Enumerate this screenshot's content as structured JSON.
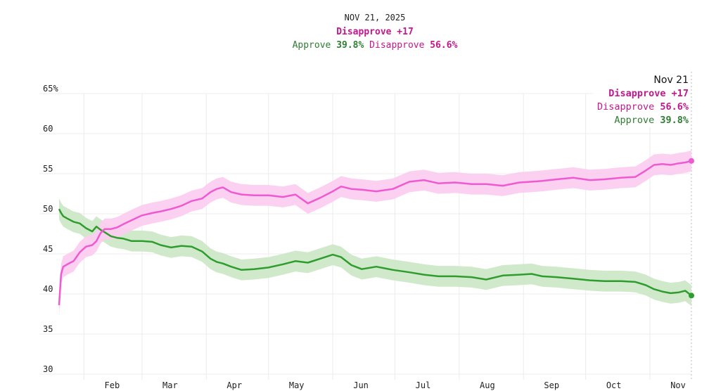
{
  "header": {
    "date": "NOV 21, 2025",
    "net": "Disapprove +17",
    "approve_label": "Approve",
    "approve_value": "39.8%",
    "disapprove_label": "Disapprove",
    "disapprove_value": "56.6%"
  },
  "callout": {
    "date": "Nov 21",
    "net": "Disapprove +17",
    "disapprove_label": "Disapprove",
    "disapprove_value": "56.6%",
    "approve_label": "Approve",
    "approve_value": "39.8%"
  },
  "colors": {
    "approve": "#2e9d2e",
    "approve_band": "#cfe8c8",
    "disapprove": "#f05ad0",
    "disapprove_band": "#fbcdef",
    "gridline": "#ececec"
  },
  "chart_data": {
    "type": "line",
    "title": "",
    "xlabel": "",
    "ylabel": "",
    "ylim": [
      30,
      65
    ],
    "y_ticks": [
      "30",
      "35",
      "40",
      "45",
      "50",
      "55",
      "60",
      "65%"
    ],
    "x_tick_labels": [
      "Feb",
      "Mar",
      "Apr",
      "May",
      "Jun",
      "Jul",
      "Aug",
      "Sep",
      "Oct",
      "Nov"
    ],
    "x_tick_dates": [
      "2025-02-01",
      "2025-03-01",
      "2025-04-01",
      "2025-05-01",
      "2025-06-01",
      "2025-07-01",
      "2025-08-01",
      "2025-09-01",
      "2025-10-01",
      "2025-11-01"
    ],
    "x_start": "2025-01-20",
    "x_end": "2025-11-21",
    "band_halfwidth": 1.3,
    "grid": true,
    "series": [
      {
        "name": "Approve",
        "x": [
          "2025-01-20",
          "2025-01-21",
          "2025-01-22",
          "2025-01-24",
          "2025-01-27",
          "2025-01-30",
          "2025-02-02",
          "2025-02-05",
          "2025-02-07",
          "2025-02-09",
          "2025-02-11",
          "2025-02-14",
          "2025-02-17",
          "2025-02-20",
          "2025-02-24",
          "2025-03-01",
          "2025-03-06",
          "2025-03-10",
          "2025-03-15",
          "2025-03-20",
          "2025-03-25",
          "2025-03-30",
          "2025-04-03",
          "2025-04-06",
          "2025-04-09",
          "2025-04-13",
          "2025-04-18",
          "2025-04-24",
          "2025-05-01",
          "2025-05-08",
          "2025-05-14",
          "2025-05-20",
          "2025-05-26",
          "2025-06-01",
          "2025-06-05",
          "2025-06-10",
          "2025-06-15",
          "2025-06-22",
          "2025-06-30",
          "2025-07-08",
          "2025-07-15",
          "2025-07-22",
          "2025-07-30",
          "2025-08-07",
          "2025-08-14",
          "2025-08-22",
          "2025-08-30",
          "2025-09-05",
          "2025-09-10",
          "2025-09-17",
          "2025-09-25",
          "2025-10-03",
          "2025-10-10",
          "2025-10-18",
          "2025-10-25",
          "2025-10-30",
          "2025-11-03",
          "2025-11-07",
          "2025-11-11",
          "2025-11-15",
          "2025-11-18",
          "2025-11-21"
        ],
        "y": [
          50.6,
          50.1,
          49.7,
          49.4,
          49.0,
          48.8,
          48.2,
          47.8,
          48.4,
          48.0,
          47.7,
          47.2,
          47.0,
          46.9,
          46.6,
          46.6,
          46.5,
          46.1,
          45.8,
          46.0,
          45.9,
          45.3,
          44.4,
          44.0,
          43.8,
          43.4,
          43.0,
          43.1,
          43.3,
          43.7,
          44.1,
          43.9,
          44.4,
          44.9,
          44.6,
          43.6,
          43.1,
          43.4,
          43.0,
          42.7,
          42.4,
          42.2,
          42.2,
          42.1,
          41.8,
          42.3,
          42.4,
          42.5,
          42.2,
          42.1,
          41.9,
          41.7,
          41.6,
          41.6,
          41.5,
          41.1,
          40.6,
          40.3,
          40.1,
          40.2,
          40.4,
          39.8
        ]
      },
      {
        "name": "Disapprove",
        "x": [
          "2025-01-20",
          "2025-01-21",
          "2025-01-22",
          "2025-01-24",
          "2025-01-27",
          "2025-01-30",
          "2025-02-02",
          "2025-02-05",
          "2025-02-07",
          "2025-02-09",
          "2025-02-11",
          "2025-02-14",
          "2025-02-17",
          "2025-02-20",
          "2025-02-24",
          "2025-03-01",
          "2025-03-06",
          "2025-03-10",
          "2025-03-15",
          "2025-03-20",
          "2025-03-25",
          "2025-03-30",
          "2025-04-03",
          "2025-04-06",
          "2025-04-09",
          "2025-04-13",
          "2025-04-18",
          "2025-04-24",
          "2025-05-01",
          "2025-05-08",
          "2025-05-14",
          "2025-05-20",
          "2025-05-26",
          "2025-06-01",
          "2025-06-05",
          "2025-06-10",
          "2025-06-15",
          "2025-06-22",
          "2025-06-30",
          "2025-07-08",
          "2025-07-15",
          "2025-07-22",
          "2025-07-30",
          "2025-08-07",
          "2025-08-14",
          "2025-08-22",
          "2025-08-30",
          "2025-09-05",
          "2025-09-10",
          "2025-09-17",
          "2025-09-25",
          "2025-10-03",
          "2025-10-10",
          "2025-10-18",
          "2025-10-25",
          "2025-10-30",
          "2025-11-03",
          "2025-11-07",
          "2025-11-11",
          "2025-11-15",
          "2025-11-18",
          "2025-11-21"
        ],
        "y": [
          38.6,
          42.5,
          43.4,
          43.7,
          44.1,
          45.2,
          45.9,
          46.1,
          46.6,
          47.6,
          48.1,
          48.1,
          48.3,
          48.7,
          49.2,
          49.8,
          50.1,
          50.3,
          50.6,
          51.0,
          51.6,
          51.9,
          52.7,
          53.1,
          53.3,
          52.7,
          52.4,
          52.3,
          52.3,
          52.1,
          52.4,
          51.3,
          52.0,
          52.8,
          53.4,
          53.1,
          53.0,
          52.8,
          53.1,
          54.0,
          54.2,
          53.8,
          53.9,
          53.7,
          53.7,
          53.5,
          53.9,
          54.0,
          54.1,
          54.3,
          54.5,
          54.2,
          54.3,
          54.5,
          54.6,
          55.4,
          56.1,
          56.2,
          56.1,
          56.3,
          56.4,
          56.6
        ]
      }
    ]
  }
}
